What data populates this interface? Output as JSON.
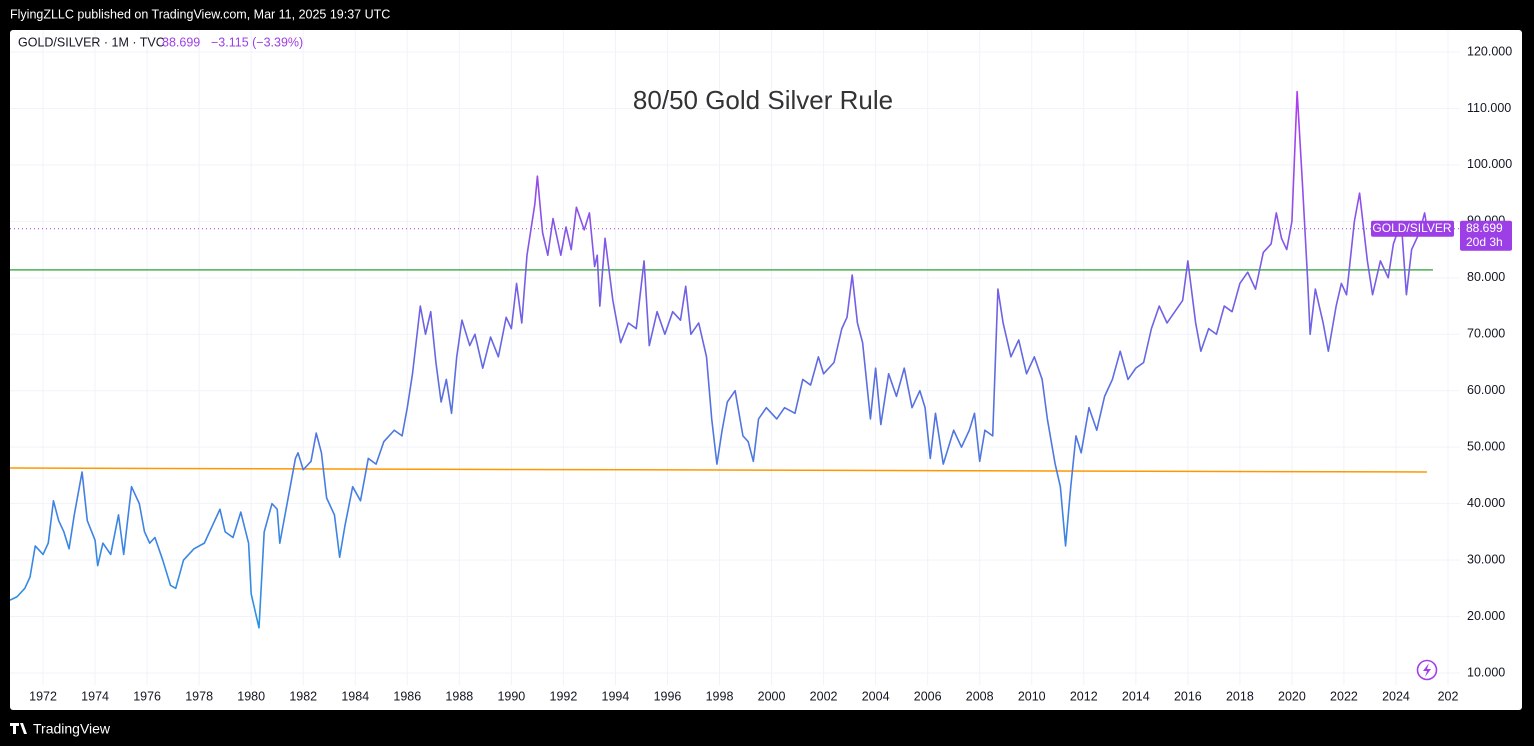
{
  "header": {
    "publisher": "FlyingZLLC published on TradingView.com, Mar 11, 2025 19:37 UTC",
    "footer": "TradingView"
  },
  "chart_data": {
    "type": "line",
    "symbol": "GOLD/SILVER · 1M · TVC",
    "last": 88.699,
    "change": "−3.115 (−3.39%)",
    "title": "80/50 Gold Silver Rule",
    "countdown": "20d 3h",
    "last_color": "#9c3fe6",
    "grid": true,
    "x": [
      1970.73,
      1971.0,
      1971.3,
      1971.5,
      1971.7,
      1972.0,
      1972.2,
      1972.4,
      1972.6,
      1972.8,
      1973.0,
      1973.2,
      1973.5,
      1973.7,
      1974.0,
      1974.1,
      1974.3,
      1974.6,
      1974.9,
      1975.1,
      1975.4,
      1975.7,
      1975.9,
      1976.1,
      1976.3,
      1976.6,
      1976.9,
      1977.1,
      1977.4,
      1977.8,
      1978.2,
      1978.5,
      1978.8,
      1979.0,
      1979.3,
      1979.6,
      1979.9,
      1980.0,
      1980.2,
      1980.3,
      1980.5,
      1980.8,
      1981.0,
      1981.1,
      1981.3,
      1981.5,
      1981.7,
      1981.8,
      1982.0,
      1982.3,
      1982.5,
      1982.7,
      1982.9,
      1983.2,
      1983.4,
      1983.6,
      1983.9,
      1984.2,
      1984.5,
      1984.8,
      1985.1,
      1985.5,
      1985.8,
      1986.0,
      1986.2,
      1986.5,
      1986.7,
      1986.9,
      1987.1,
      1987.3,
      1987.5,
      1987.7,
      1987.9,
      1988.1,
      1988.4,
      1988.6,
      1988.9,
      1989.2,
      1989.5,
      1989.8,
      1990.0,
      1990.2,
      1990.4,
      1990.6,
      1990.9,
      1991.0,
      1991.2,
      1991.4,
      1991.6,
      1991.9,
      1992.1,
      1992.3,
      1992.5,
      1992.8,
      1993.0,
      1993.2,
      1993.3,
      1993.4,
      1993.6,
      1993.9,
      1994.2,
      1994.5,
      1994.8,
      1995.1,
      1995.3,
      1995.6,
      1995.9,
      1996.2,
      1996.5,
      1996.7,
      1996.9,
      1997.2,
      1997.5,
      1997.7,
      1997.9,
      1998.1,
      1998.3,
      1998.6,
      1998.9,
      1999.1,
      1999.3,
      1999.5,
      1999.8,
      2000.2,
      2000.5,
      2000.9,
      2001.2,
      2001.5,
      2001.8,
      2002.0,
      2002.4,
      2002.7,
      2002.9,
      2003.1,
      2003.3,
      2003.5,
      2003.8,
      2004.0,
      2004.2,
      2004.5,
      2004.8,
      2005.1,
      2005.4,
      2005.7,
      2005.9,
      2006.1,
      2006.3,
      2006.6,
      2006.8,
      2007.0,
      2007.3,
      2007.6,
      2007.8,
      2008.0,
      2008.2,
      2008.5,
      2008.7,
      2008.9,
      2009.2,
      2009.5,
      2009.8,
      2010.1,
      2010.4,
      2010.6,
      2010.9,
      2011.1,
      2011.3,
      2011.5,
      2011.7,
      2011.9,
      2012.2,
      2012.5,
      2012.8,
      2013.1,
      2013.4,
      2013.7,
      2014.0,
      2014.3,
      2014.6,
      2014.9,
      2015.2,
      2015.5,
      2015.8,
      2016.0,
      2016.3,
      2016.5,
      2016.8,
      2017.1,
      2017.4,
      2017.7,
      2018.0,
      2018.3,
      2018.6,
      2018.9,
      2019.2,
      2019.4,
      2019.6,
      2019.8,
      2020.0,
      2020.2,
      2020.4,
      2020.6,
      2020.7,
      2020.9,
      2021.2,
      2021.4,
      2021.7,
      2021.9,
      2022.1,
      2022.4,
      2022.6,
      2022.9,
      2023.1,
      2023.4,
      2023.7,
      2023.9,
      2024.2,
      2024.4,
      2024.6,
      2024.9,
      2025.1,
      2025.2
    ],
    "series": [
      {
        "name": "GOLD/SILVER",
        "gradient": [
          "#1e9be6",
          "#5a6fe0",
          "#b03cf0"
        ],
        "values": [
          22.9,
          23.5,
          25,
          27,
          32.5,
          31,
          33,
          40.5,
          37,
          35,
          32,
          38,
          45.6,
          37,
          33.5,
          29,
          33,
          31,
          38,
          31,
          43,
          40,
          35,
          33,
          34,
          30,
          25.5,
          25,
          30,
          32,
          33,
          36,
          39,
          35,
          34,
          38.5,
          33,
          24,
          20,
          18,
          35,
          40,
          39,
          33,
          38,
          43,
          48,
          49,
          46,
          47.5,
          52.5,
          49,
          41,
          38,
          30.5,
          36,
          43,
          40.5,
          48,
          47,
          51,
          53,
          52,
          57,
          63,
          75,
          70,
          74,
          65,
          58,
          62,
          56,
          66,
          72.5,
          68,
          70,
          64,
          69.5,
          66,
          73,
          71,
          79,
          72,
          84,
          93,
          98,
          88,
          84,
          90.5,
          84,
          89,
          85,
          92.5,
          88.5,
          91.5,
          82,
          84,
          75,
          87,
          76,
          68.5,
          72,
          71,
          83,
          68,
          74,
          70,
          74,
          72.5,
          78.5,
          70,
          72,
          66,
          55,
          47,
          53,
          58,
          60,
          52,
          51,
          47.5,
          55,
          57,
          55,
          57,
          56,
          62,
          61,
          66,
          63,
          65,
          71,
          73,
          80.5,
          72,
          68.5,
          55,
          64,
          54,
          63,
          59,
          64,
          57,
          60,
          57,
          48,
          56,
          47,
          50,
          53,
          50,
          53,
          56,
          47.5,
          53,
          52,
          78,
          72,
          66,
          69,
          63,
          66,
          62,
          55,
          47,
          43,
          32.5,
          43,
          52,
          49,
          57,
          53,
          59,
          62,
          67,
          62,
          64,
          65,
          71,
          75,
          72,
          74,
          76,
          83,
          72,
          67,
          71,
          70,
          75,
          74,
          79,
          81,
          78,
          84.5,
          86,
          91.5,
          87,
          85,
          90,
          113,
          97,
          80,
          70,
          78,
          72,
          67,
          75,
          79,
          77,
          90,
          95,
          83,
          77,
          83,
          80,
          86,
          90,
          77,
          85,
          88,
          91.5,
          88.699
        ]
      }
    ],
    "hlines": [
      {
        "color": "#4caf50",
        "x": [
          1970.73,
          2025.42
        ],
        "values": [
          81.4,
          81.4
        ]
      },
      {
        "color": "#ff9800",
        "x": [
          1970.73,
          2025.19
        ],
        "values": [
          46.3,
          45.6
        ]
      }
    ],
    "xlim": [
      1970.73,
      2026.46
    ],
    "ylim": [
      7.87,
      123.9
    ],
    "xticks": [
      1972,
      1974,
      1976,
      1978,
      1980,
      1982,
      1984,
      1986,
      1988,
      1990,
      1992,
      1994,
      1996,
      1998,
      2000,
      2002,
      2004,
      2006,
      2008,
      2010,
      2012,
      2014,
      2016,
      2018,
      2020,
      2022,
      2024,
      {
        "value": 2026,
        "label": "202"
      }
    ],
    "yticks": [
      {
        "value": 10,
        "label": "10.000"
      },
      {
        "value": 20,
        "label": "20.000"
      },
      {
        "value": 30,
        "label": "30.000"
      },
      {
        "value": 40,
        "label": "40.000"
      },
      {
        "value": 50,
        "label": "50.000"
      },
      {
        "value": 60,
        "label": "60.000"
      },
      {
        "value": 70,
        "label": "70.000"
      },
      {
        "value": 80,
        "label": "80.000"
      },
      {
        "value": 90,
        "label": "90.000"
      },
      {
        "value": 100,
        "label": "100.000"
      },
      {
        "value": 110,
        "label": "110.000"
      },
      {
        "value": 120,
        "label": "120.000"
      }
    ]
  }
}
